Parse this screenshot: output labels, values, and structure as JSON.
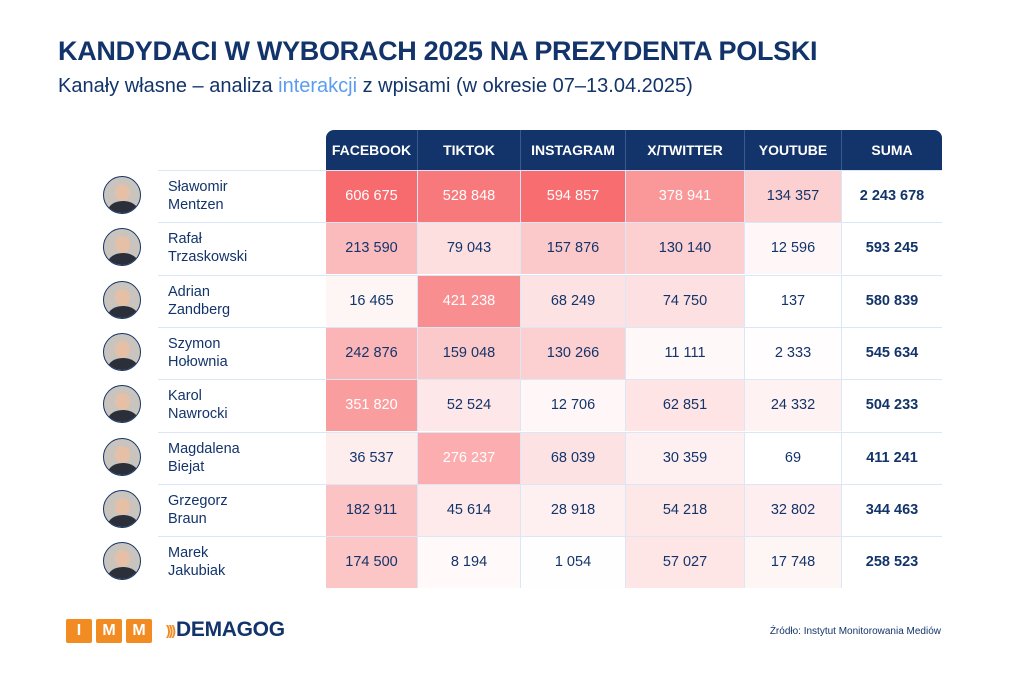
{
  "header": {
    "title": "KANDYDACI W WYBORACH 2025 NA PREZYDENTA POLSKI",
    "subtitle_pre": "Kanały własne – analiza ",
    "subtitle_highlight": "interakcji",
    "subtitle_post": " z wpisami (w okresie 07–13.04.2025)"
  },
  "footer": {
    "logo_imm": [
      "I",
      "M",
      "M"
    ],
    "logo_demagog": "DEMAGOG",
    "source": "Źródło: Instytut Monitorowania Mediów"
  },
  "colors": {
    "navy": "#13346a",
    "highlight": "#5b9cf0",
    "heat_max": "#f76b6e",
    "heat_min": "#ffffff",
    "logo_orange": "#f28b22"
  },
  "chart_data": {
    "type": "table",
    "title": "KANDYDACI W WYBORACH 2025 NA PREZYDENTA POLSKI",
    "subtitle": "Kanały własne – analiza interakcji z wpisami (w okresie 07–13.04.2025)",
    "columns": [
      "FACEBOOK",
      "TIKTOK",
      "INSTAGRAM",
      "X/TWITTER",
      "YOUTUBE",
      "SUMA"
    ],
    "rows": [
      {
        "first": "Sławomir",
        "last": "Mentzen",
        "values": [
          606675,
          528848,
          594857,
          378941,
          134357
        ],
        "display": [
          "606 675",
          "528 848",
          "594 857",
          "378 941",
          "134 357"
        ],
        "sum": "2 243 678"
      },
      {
        "first": "Rafał",
        "last": "Trzaskowski",
        "values": [
          213590,
          79043,
          157876,
          130140,
          12596
        ],
        "display": [
          "213 590",
          "79 043",
          "157 876",
          "130 140",
          "12 596"
        ],
        "sum": "593 245"
      },
      {
        "first": "Adrian",
        "last": "Zandberg",
        "values": [
          16465,
          421238,
          68249,
          74750,
          137
        ],
        "display": [
          "16 465",
          "421 238",
          "68 249",
          "74 750",
          "137"
        ],
        "sum": "580 839"
      },
      {
        "first": "Szymon",
        "last": "Hołownia",
        "values": [
          242876,
          159048,
          130266,
          11111,
          2333
        ],
        "display": [
          "242 876",
          "159 048",
          "130 266",
          "11 111",
          "2 333"
        ],
        "sum": "545 634"
      },
      {
        "first": "Karol",
        "last": "Nawrocki",
        "values": [
          351820,
          52524,
          12706,
          62851,
          24332
        ],
        "display": [
          "351 820",
          "52 524",
          "12 706",
          "62 851",
          "24 332"
        ],
        "sum": "504 233"
      },
      {
        "first": "Magdalena",
        "last": "Biejat",
        "values": [
          36537,
          276237,
          68039,
          30359,
          69
        ],
        "display": [
          "36 537",
          "276 237",
          "68 039",
          "30 359",
          "69"
        ],
        "sum": "411 241"
      },
      {
        "first": "Grzegorz",
        "last": "Braun",
        "values": [
          182911,
          45614,
          28918,
          54218,
          32802
        ],
        "display": [
          "182 911",
          "45 614",
          "28 918",
          "54 218",
          "32 802"
        ],
        "sum": "344 463"
      },
      {
        "first": "Marek",
        "last": "Jakubiak",
        "values": [
          174500,
          8194,
          1054,
          57027,
          17748
        ],
        "display": [
          "174 500",
          "8 194",
          "1 054",
          "57 027",
          "17 748"
        ],
        "sum": "258 523"
      }
    ]
  }
}
